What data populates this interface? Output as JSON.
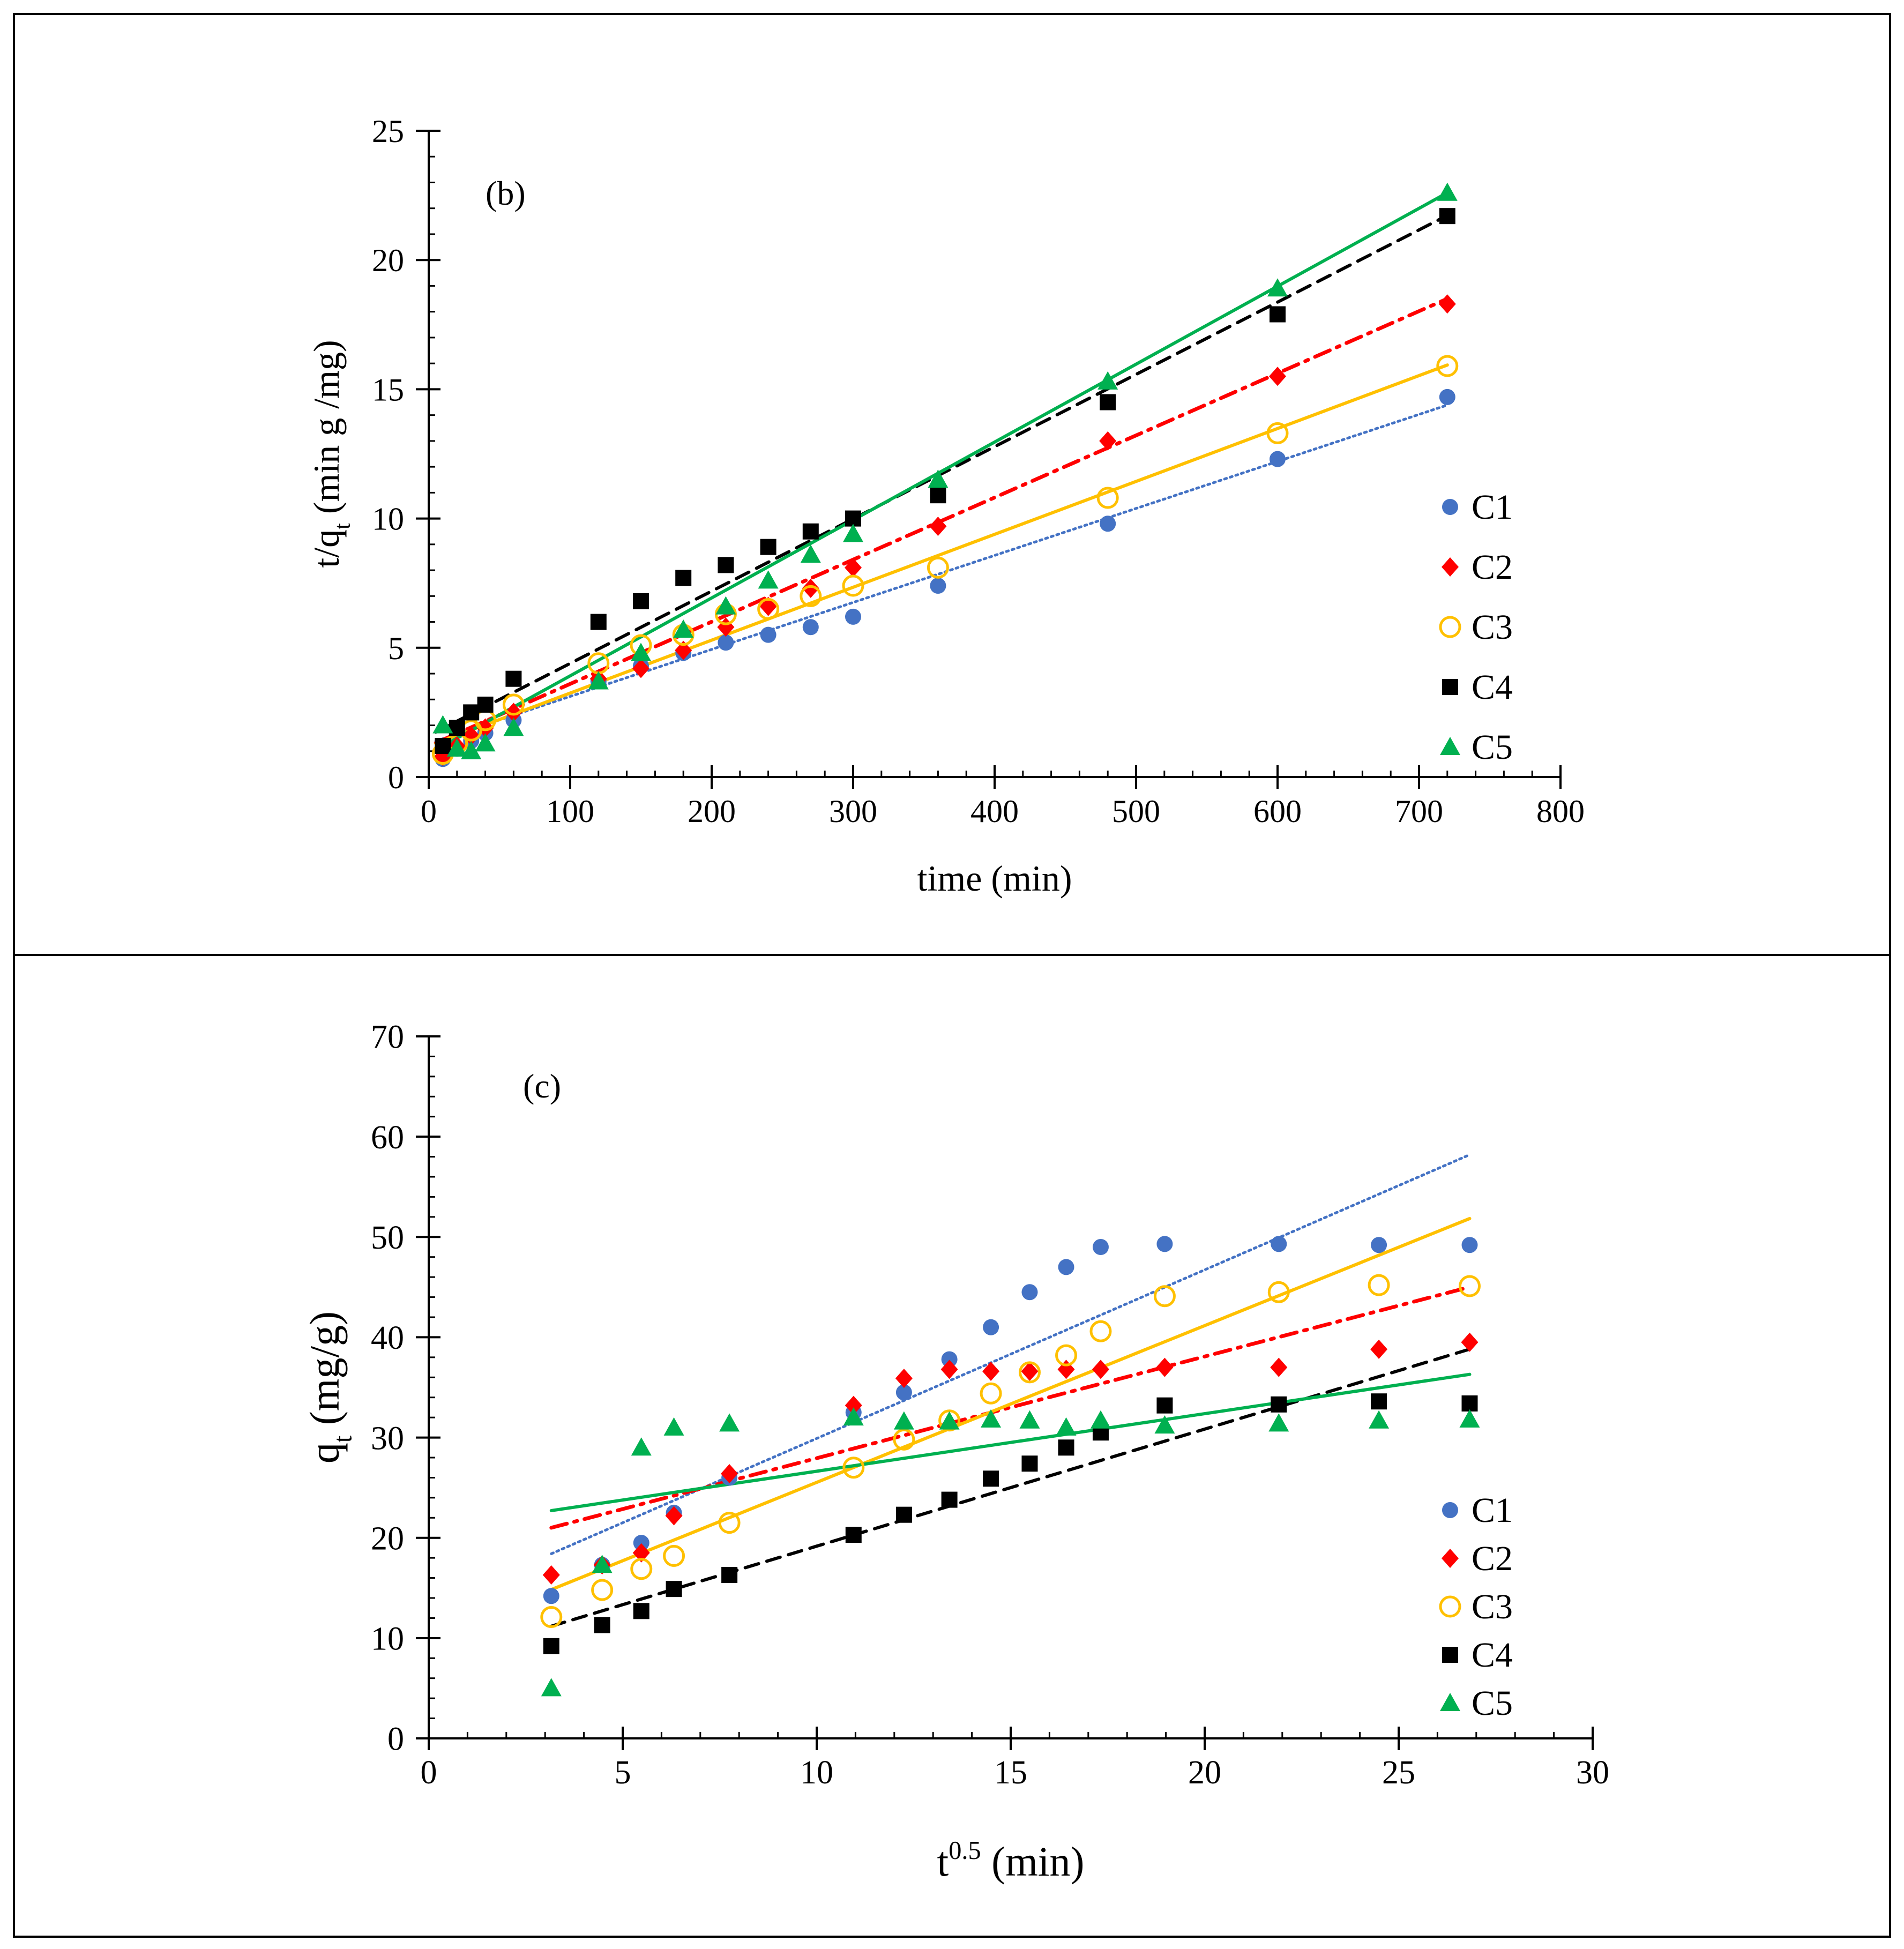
{
  "chart_data": [
    {
      "type": "scatter",
      "panel_label": "(b)",
      "xlabel": "time (min)",
      "ylabel": {
        "main": "t/q",
        "sub": "t",
        "rest": " (min g /mg)"
      },
      "xlim": [
        0,
        800
      ],
      "ylim": [
        0,
        25
      ],
      "xticks": [
        0,
        100,
        200,
        300,
        400,
        500,
        600,
        700,
        800
      ],
      "yticks": [
        0,
        5,
        10,
        15,
        20,
        25
      ],
      "x_minor_step": 20,
      "y_minor_step": 1,
      "legend": "right",
      "series": [
        {
          "name": "C1",
          "color": "#4472C4",
          "marker": "circle-filled",
          "points": [
            [
              10,
              0.7
            ],
            [
              20,
              1.1
            ],
            [
              30,
              1.4
            ],
            [
              40,
              1.7
            ],
            [
              60,
              2.2
            ],
            [
              120,
              3.7
            ],
            [
              150,
              4.3
            ],
            [
              180,
              4.8
            ],
            [
              210,
              5.2
            ],
            [
              240,
              5.5
            ],
            [
              270,
              5.8
            ],
            [
              300,
              6.2
            ],
            [
              360,
              7.4
            ],
            [
              480,
              9.8
            ],
            [
              600,
              12.3
            ],
            [
              720,
              14.7
            ]
          ],
          "fit": {
            "slope": 0.01818,
            "intercept": 1.3,
            "x_range": [
              5,
              720
            ],
            "style": "dotted"
          }
        },
        {
          "name": "C2",
          "color": "#FF0000",
          "marker": "diamond-filled",
          "points": [
            [
              10,
              0.8
            ],
            [
              20,
              1.2
            ],
            [
              30,
              1.6
            ],
            [
              40,
              1.9
            ],
            [
              60,
              2.5
            ],
            [
              120,
              3.8
            ],
            [
              150,
              4.2
            ],
            [
              180,
              4.9
            ],
            [
              210,
              5.8
            ],
            [
              240,
              6.6
            ],
            [
              270,
              7.3
            ],
            [
              300,
              8.1
            ],
            [
              360,
              9.7
            ],
            [
              480,
              13.0
            ],
            [
              600,
              15.5
            ],
            [
              720,
              18.3
            ]
          ],
          "fit": {
            "slope": 0.02403,
            "intercept": 1.2,
            "x_range": [
              5,
              720
            ],
            "style": "dash-dot"
          }
        },
        {
          "name": "C3",
          "color": "#FFC000",
          "marker": "circle-open",
          "points": [
            [
              10,
              0.9
            ],
            [
              20,
              1.3
            ],
            [
              30,
              1.8
            ],
            [
              40,
              2.2
            ],
            [
              60,
              2.8
            ],
            [
              120,
              4.4
            ],
            [
              150,
              5.1
            ],
            [
              180,
              5.5
            ],
            [
              210,
              6.3
            ],
            [
              240,
              6.5
            ],
            [
              270,
              7.0
            ],
            [
              300,
              7.4
            ],
            [
              360,
              8.1
            ],
            [
              480,
              10.8
            ],
            [
              600,
              13.3
            ],
            [
              720,
              15.9
            ]
          ],
          "fit": {
            "slope": 0.02047,
            "intercept": 1.2,
            "x_range": [
              5,
              720
            ],
            "style": "solid"
          }
        },
        {
          "name": "C4",
          "color": "#000000",
          "marker": "square-filled",
          "points": [
            [
              10,
              1.2
            ],
            [
              20,
              1.9
            ],
            [
              30,
              2.5
            ],
            [
              40,
              2.8
            ],
            [
              60,
              3.8
            ],
            [
              120,
              6.0
            ],
            [
              150,
              6.8
            ],
            [
              180,
              7.7
            ],
            [
              210,
              8.2
            ],
            [
              240,
              8.9
            ],
            [
              270,
              9.5
            ],
            [
              300,
              10.0
            ],
            [
              360,
              10.9
            ],
            [
              480,
              14.5
            ],
            [
              600,
              17.9
            ],
            [
              720,
              21.7
            ]
          ],
          "fit": {
            "slope": 0.02795,
            "intercept": 1.6,
            "x_range": [
              5,
              720
            ],
            "style": "dashed"
          }
        },
        {
          "name": "C5",
          "color": "#00B050",
          "marker": "triangle-filled",
          "points": [
            [
              10,
              2.0
            ],
            [
              20,
              1.1
            ],
            [
              30,
              1.0
            ],
            [
              40,
              1.3
            ],
            [
              60,
              1.9
            ],
            [
              120,
              3.7
            ],
            [
              150,
              4.8
            ],
            [
              180,
              5.7
            ],
            [
              210,
              6.6
            ],
            [
              240,
              7.6
            ],
            [
              270,
              8.6
            ],
            [
              300,
              9.4
            ],
            [
              360,
              11.5
            ],
            [
              480,
              15.3
            ],
            [
              600,
              18.9
            ],
            [
              720,
              22.6
            ]
          ],
          "fit": {
            "slope": 0.03014,
            "intercept": 0.9,
            "x_range": [
              5,
              720
            ],
            "style": "solid"
          }
        }
      ]
    },
    {
      "type": "scatter",
      "panel_label": "(c)",
      "xlabel": {
        "main": "t",
        "sup": "0.5",
        "rest": " (min)"
      },
      "ylabel": {
        "main": "q",
        "sub": "t",
        "rest": " (mg/g)"
      },
      "xlim": [
        0,
        30
      ],
      "ylim": [
        0,
        70
      ],
      "xticks": [
        0,
        5,
        10,
        15,
        20,
        25,
        30
      ],
      "yticks": [
        0,
        10,
        20,
        30,
        40,
        50,
        60,
        70
      ],
      "x_minor_step": 1,
      "y_minor_step": 2,
      "legend": "right",
      "series": [
        {
          "name": "C1",
          "color": "#4472C4",
          "marker": "circle-filled",
          "points": [
            [
              3.16,
              14.2
            ],
            [
              4.47,
              17.3
            ],
            [
              5.48,
              19.5
            ],
            [
              6.32,
              22.5
            ],
            [
              7.75,
              26.0
            ],
            [
              10.95,
              32.5
            ],
            [
              12.25,
              34.5
            ],
            [
              13.42,
              37.8
            ],
            [
              14.49,
              41.0
            ],
            [
              15.49,
              44.5
            ],
            [
              16.43,
              47.0
            ],
            [
              17.32,
              49.0
            ],
            [
              18.97,
              49.3
            ],
            [
              21.91,
              49.3
            ],
            [
              24.49,
              49.2
            ],
            [
              26.83,
              49.2
            ]
          ],
          "fit": {
            "slope": 1.681,
            "intercept": 13.1,
            "x_range": [
              3.16,
              26.83
            ],
            "style": "dotted"
          }
        },
        {
          "name": "C2",
          "color": "#FF0000",
          "marker": "diamond-filled",
          "points": [
            [
              3.16,
              16.3
            ],
            [
              4.47,
              17.3
            ],
            [
              5.48,
              18.5
            ],
            [
              6.32,
              22.2
            ],
            [
              7.75,
              26.4
            ],
            [
              10.95,
              33.2
            ],
            [
              12.25,
              35.9
            ],
            [
              13.42,
              36.8
            ],
            [
              14.49,
              36.6
            ],
            [
              15.49,
              36.6
            ],
            [
              16.43,
              36.8
            ],
            [
              17.32,
              36.8
            ],
            [
              18.97,
              37.0
            ],
            [
              21.91,
              37.0
            ],
            [
              24.49,
              38.8
            ],
            [
              26.83,
              39.5
            ]
          ],
          "fit": {
            "slope": 1.014,
            "intercept": 17.8,
            "x_range": [
              3.16,
              26.83
            ],
            "style": "dash-dot"
          }
        },
        {
          "name": "C3",
          "color": "#FFC000",
          "marker": "circle-open",
          "points": [
            [
              3.16,
              12.1
            ],
            [
              4.47,
              14.8
            ],
            [
              5.48,
              16.9
            ],
            [
              6.32,
              18.2
            ],
            [
              7.75,
              21.5
            ],
            [
              10.95,
              27.0
            ],
            [
              12.25,
              29.8
            ],
            [
              13.42,
              31.7
            ],
            [
              14.49,
              34.4
            ],
            [
              15.49,
              36.5
            ],
            [
              16.43,
              38.2
            ],
            [
              17.32,
              40.6
            ],
            [
              18.97,
              44.1
            ],
            [
              21.91,
              44.5
            ],
            [
              24.49,
              45.2
            ],
            [
              26.83,
              45.1
            ]
          ],
          "fit": {
            "slope": 1.563,
            "intercept": 9.9,
            "x_range": [
              3.16,
              26.83
            ],
            "style": "solid"
          }
        },
        {
          "name": "C4",
          "color": "#000000",
          "marker": "square-filled",
          "points": [
            [
              3.16,
              9.2
            ],
            [
              4.47,
              11.3
            ],
            [
              5.48,
              12.7
            ],
            [
              6.32,
              14.9
            ],
            [
              7.75,
              16.3
            ],
            [
              10.95,
              20.3
            ],
            [
              12.25,
              22.3
            ],
            [
              13.42,
              23.8
            ],
            [
              14.49,
              25.9
            ],
            [
              15.49,
              27.4
            ],
            [
              16.43,
              29.0
            ],
            [
              17.32,
              30.5
            ],
            [
              18.97,
              33.2
            ],
            [
              21.91,
              33.3
            ],
            [
              24.49,
              33.6
            ],
            [
              26.83,
              33.4
            ]
          ],
          "fit": {
            "slope": 1.167,
            "intercept": 7.5,
            "x_range": [
              3.16,
              26.83
            ],
            "style": "dashed"
          }
        },
        {
          "name": "C5",
          "color": "#00B050",
          "marker": "triangle-filled",
          "points": [
            [
              3.16,
              5.0
            ],
            [
              4.47,
              17.3
            ],
            [
              5.48,
              29.0
            ],
            [
              6.32,
              31.0
            ],
            [
              7.75,
              31.4
            ],
            [
              10.95,
              32.0
            ],
            [
              12.25,
              31.6
            ],
            [
              13.42,
              31.6
            ],
            [
              14.49,
              31.8
            ],
            [
              15.49,
              31.7
            ],
            [
              16.43,
              31.0
            ],
            [
              17.32,
              31.7
            ],
            [
              18.97,
              31.2
            ],
            [
              21.91,
              31.4
            ],
            [
              24.49,
              31.7
            ],
            [
              26.83,
              31.8
            ]
          ],
          "fit": {
            "slope": 0.574,
            "intercept": 20.9,
            "x_range": [
              3.16,
              26.83
            ],
            "style": "solid"
          }
        }
      ]
    }
  ]
}
